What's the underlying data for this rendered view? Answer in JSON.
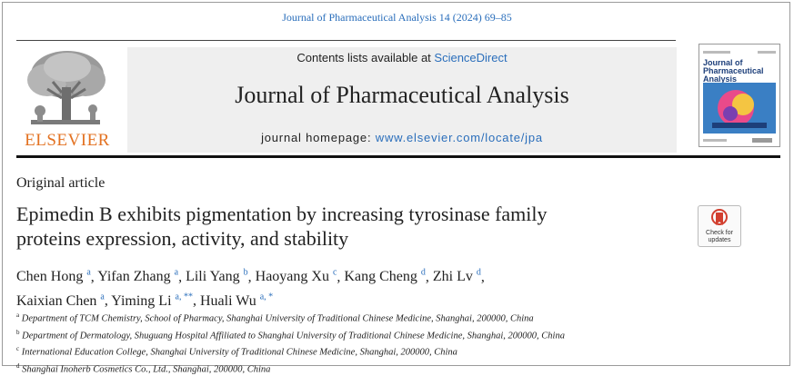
{
  "citation": "Journal of Pharmaceutical Analysis 14 (2024) 69–85",
  "publisher": {
    "name": "ELSEVIER",
    "logo_icon": "elsevier-tree-icon"
  },
  "banner": {
    "contents_prefix": "Contents lists available at ",
    "contents_link": "ScienceDirect",
    "journal_title": "Journal of Pharmaceutical Analysis",
    "homepage_prefix": "journal homepage: ",
    "homepage_link": "www.elsevier.com/locate/jpa"
  },
  "cover": {
    "title": "Journal of Pharmaceutical Analysis"
  },
  "article_type": "Original article",
  "title_line1": "Epimedin B exhibits pigmentation by increasing tyrosinase family",
  "title_line2": "proteins expression, activity, and stability",
  "check_updates": {
    "line1": "Check for",
    "line2": "updates"
  },
  "authors": [
    {
      "name": "Chen Hong",
      "sup": "a",
      "sep": ", "
    },
    {
      "name": "Yifan Zhang",
      "sup": "a",
      "sep": ", "
    },
    {
      "name": "Lili Yang",
      "sup": "b",
      "sep": ", "
    },
    {
      "name": "Haoyang Xu",
      "sup": "c",
      "sep": ", "
    },
    {
      "name": "Kang Cheng",
      "sup": "d",
      "sep": ", "
    },
    {
      "name": "Zhi Lv",
      "sup": "d",
      "sep": ","
    },
    {
      "name": "Kaixian Chen",
      "sup": "a",
      "sep": ", "
    },
    {
      "name": "Yiming Li",
      "sup": "a, **",
      "sep": ", "
    },
    {
      "name": "Huali Wu",
      "sup": "a, *",
      "sep": ""
    }
  ],
  "affiliations": [
    {
      "mark": "a",
      "text": "Department of TCM Chemistry, School of Pharmacy, Shanghai University of Traditional Chinese Medicine, Shanghai, 200000, China"
    },
    {
      "mark": "b",
      "text": "Department of Dermatology, Shuguang Hospital Affiliated to Shanghai University of Traditional Chinese Medicine, Shanghai, 200000, China"
    },
    {
      "mark": "c",
      "text": "International Education College, Shanghai University of Traditional Chinese Medicine, Shanghai, 200000, China"
    },
    {
      "mark": "d",
      "text": "Shanghai Inoherb Cosmetics Co., Ltd., Shanghai, 200000, China"
    }
  ]
}
